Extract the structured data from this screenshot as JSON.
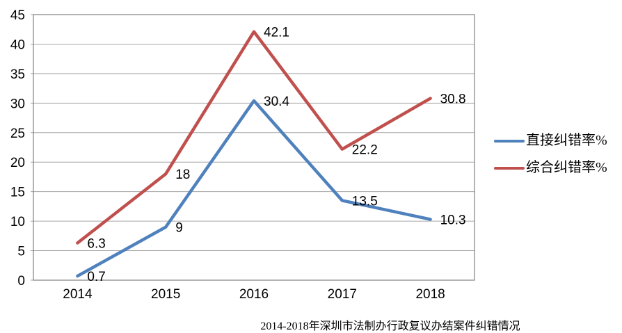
{
  "chart_data": {
    "type": "line",
    "title": "2014-2018年深圳市法制办行政复议办结案件纠错情况",
    "xlabel": "",
    "ylabel": "",
    "categories": [
      "2014",
      "2015",
      "2016",
      "2017",
      "2018"
    ],
    "series": [
      {
        "name": "直接纠错率%",
        "color": "#4F81BD",
        "values": [
          0.7,
          9,
          30.4,
          13.5,
          10.3
        ],
        "point_labels": [
          "0.7",
          "9",
          "30.4",
          "13.5",
          "10.3"
        ]
      },
      {
        "name": "综合纠错率%",
        "color": "#C0504D",
        "values": [
          6.3,
          18,
          42.1,
          22.2,
          30.8
        ],
        "point_labels": [
          "6.3",
          "18",
          "42.1",
          "22.2",
          "30.8"
        ]
      }
    ],
    "ylim": [
      0,
      45
    ],
    "ytick_step": 5,
    "ytick_labels": [
      "0",
      "5",
      "10",
      "15",
      "20",
      "25",
      "30",
      "35",
      "40",
      "45"
    ],
    "grid": true,
    "legend_position": "right",
    "colors": {
      "grid": "#A6A6A6",
      "axis_border": "#808080",
      "text": "#000000",
      "background": "#FFFFFF"
    }
  }
}
